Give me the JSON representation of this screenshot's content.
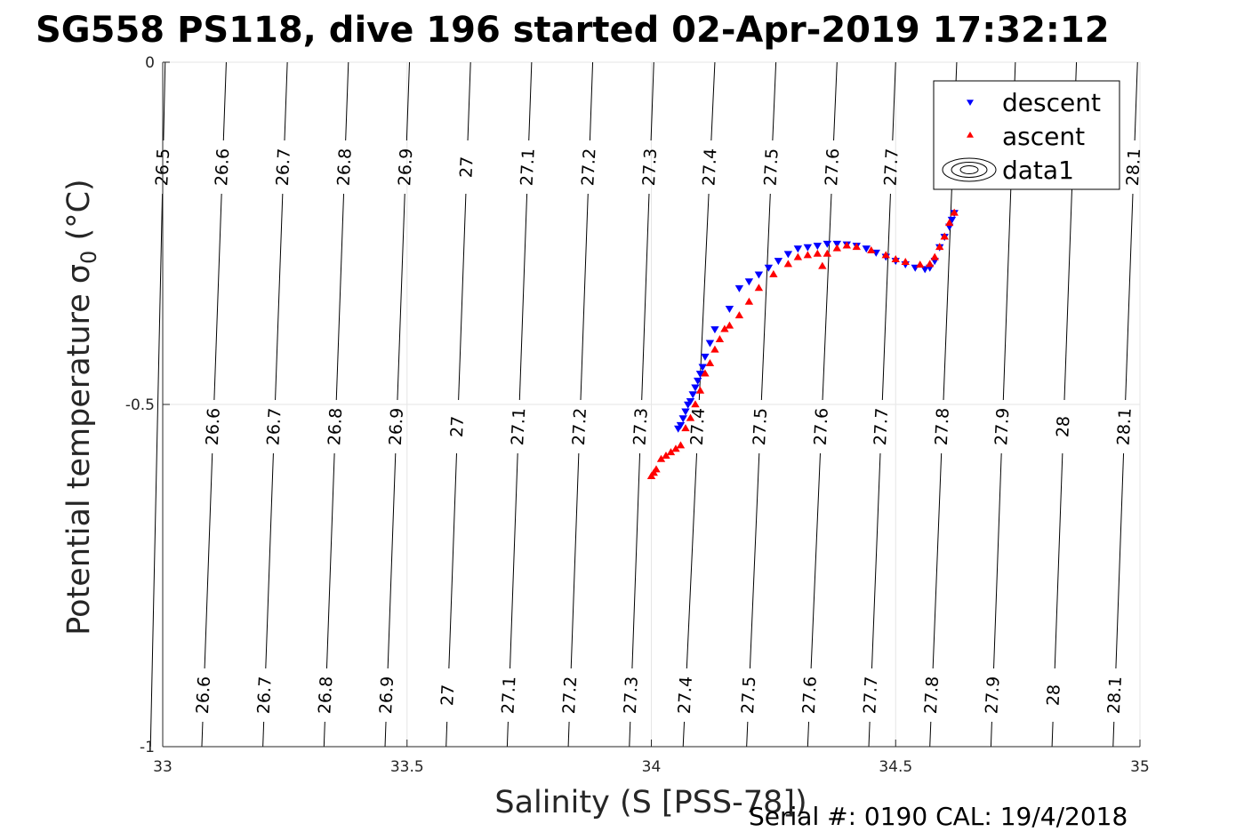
{
  "figure": {
    "title": "SG558 PS118, dive 196 started 02-Apr-2019 17:32:12",
    "footer": "Serial #: 0190  CAL: 19/4/2018"
  },
  "colors": {
    "descent": "#0000ff",
    "ascent": "#ff0000",
    "contour": "#000000",
    "grid": "#e6e6e6",
    "axis": "#262626"
  },
  "chart_data": {
    "type": "scatter",
    "title": "SG558 PS118, dive 196 started 02-Apr-2019 17:32:12",
    "xlabel": "Salinity (S [PSS-78])",
    "ylabel": "Potential temperature σ",
    "ylabel_sub": "0",
    "ylabel_unit": " (°C)",
    "xlim": [
      33,
      35
    ],
    "ylim": [
      -1,
      0
    ],
    "xticks": [
      33,
      33.5,
      34,
      34.5,
      35
    ],
    "xtick_labels": [
      "33",
      "33.5",
      "34",
      "34.5",
      "35"
    ],
    "yticks": [
      0,
      -0.5,
      -1
    ],
    "ytick_labels": [
      "0",
      "-0.5",
      "-1"
    ],
    "grid": true,
    "legend": {
      "position": "top-right",
      "entries": [
        {
          "label": "descent",
          "marker": "triangle-down",
          "color": "#0000ff"
        },
        {
          "label": "ascent",
          "marker": "triangle-up",
          "color": "#ff0000"
        },
        {
          "label": "data1",
          "marker": "contour"
        }
      ]
    },
    "contours": [
      {
        "level": "26.5",
        "s_top": 33.005,
        "s_bottom": 32.975
      },
      {
        "level": "26.6",
        "s_top": 33.13,
        "s_bottom": 33.08
      },
      {
        "level": "26.7",
        "s_top": 33.255,
        "s_bottom": 33.205
      },
      {
        "level": "26.8",
        "s_top": 33.38,
        "s_bottom": 33.33
      },
      {
        "level": "26.9",
        "s_top": 33.505,
        "s_bottom": 33.455
      },
      {
        "level": "27",
        "s_top": 33.63,
        "s_bottom": 33.58
      },
      {
        "level": "27.1",
        "s_top": 33.755,
        "s_bottom": 33.705
      },
      {
        "level": "27.2",
        "s_top": 33.88,
        "s_bottom": 33.83
      },
      {
        "level": "27.3",
        "s_top": 34.005,
        "s_bottom": 33.955
      },
      {
        "level": "27.4",
        "s_top": 34.13,
        "s_bottom": 34.065
      },
      {
        "level": "27.5",
        "s_top": 34.255,
        "s_bottom": 34.195
      },
      {
        "level": "27.6",
        "s_top": 34.38,
        "s_bottom": 34.32
      },
      {
        "level": "27.7",
        "s_top": 34.5,
        "s_bottom": 34.445
      },
      {
        "level": "27.8",
        "s_top": 34.625,
        "s_bottom": 34.57
      },
      {
        "level": "27.9",
        "s_top": 34.745,
        "s_bottom": 34.695
      },
      {
        "level": "28",
        "s_top": 34.87,
        "s_bottom": 34.82
      },
      {
        "level": "28.1",
        "s_top": 34.995,
        "s_bottom": 34.945
      }
    ],
    "contour_label_rows": [
      {
        "row": "top",
        "levels": [
          "26.5",
          "26.6",
          "26.7",
          "26.8",
          "26.9",
          "27",
          "27.1",
          "27.2",
          "27.3",
          "27.4",
          "27.5",
          "27.6",
          "27.7",
          "28.1"
        ]
      },
      {
        "row": "middle",
        "levels": [
          "26.6",
          "26.7",
          "26.8",
          "26.9",
          "27",
          "27.1",
          "27.2",
          "27.3",
          "27.4",
          "27.5",
          "27.6",
          "27.7",
          "27.8",
          "27.9",
          "28",
          "28.1"
        ]
      },
      {
        "row": "bottom",
        "levels": [
          "26.6",
          "26.7",
          "26.8",
          "26.9",
          "27",
          "27.1",
          "27.2",
          "27.3",
          "27.4",
          "27.5",
          "27.6",
          "27.7",
          "27.8",
          "27.9",
          "28",
          "28.1"
        ]
      }
    ],
    "series": [
      {
        "name": "descent",
        "marker": "triangle-down",
        "color": "#0000ff",
        "x": [
          34.055,
          34.06,
          34.065,
          34.07,
          34.075,
          34.08,
          34.085,
          34.09,
          34.095,
          34.1,
          34.105,
          34.11,
          34.12,
          34.13,
          34.16,
          34.18,
          34.2,
          34.22,
          34.24,
          34.26,
          34.28,
          34.3,
          34.32,
          34.34,
          34.36,
          34.38,
          34.4,
          34.42,
          34.44,
          34.46,
          34.48,
          34.5,
          34.52,
          34.54,
          34.56,
          34.57,
          34.58,
          34.59,
          34.6,
          34.61,
          34.615,
          34.62
        ],
        "y": [
          -0.535,
          -0.53,
          -0.52,
          -0.51,
          -0.5,
          -0.495,
          -0.485,
          -0.475,
          -0.465,
          -0.455,
          -0.445,
          -0.43,
          -0.41,
          -0.39,
          -0.36,
          -0.33,
          -0.32,
          -0.31,
          -0.3,
          -0.29,
          -0.28,
          -0.272,
          -0.27,
          -0.268,
          -0.265,
          -0.265,
          -0.266,
          -0.268,
          -0.272,
          -0.278,
          -0.284,
          -0.29,
          -0.295,
          -0.3,
          -0.302,
          -0.3,
          -0.29,
          -0.27,
          -0.255,
          -0.24,
          -0.23,
          -0.22
        ]
      },
      {
        "name": "ascent",
        "marker": "triangle-up",
        "color": "#ff0000",
        "x": [
          34.0,
          34.005,
          34.01,
          34.02,
          34.03,
          34.04,
          34.05,
          34.06,
          34.07,
          34.08,
          34.09,
          34.1,
          34.11,
          34.12,
          34.13,
          34.14,
          34.15,
          34.16,
          34.18,
          34.2,
          34.22,
          34.25,
          34.28,
          34.3,
          34.32,
          34.34,
          34.35,
          34.36,
          34.38,
          34.4,
          34.42,
          34.45,
          34.48,
          34.5,
          34.52,
          34.55,
          34.57,
          34.58,
          34.59,
          34.6,
          34.61,
          34.62
        ],
        "y": [
          -0.605,
          -0.6,
          -0.595,
          -0.58,
          -0.575,
          -0.57,
          -0.565,
          -0.56,
          -0.535,
          -0.52,
          -0.5,
          -0.48,
          -0.455,
          -0.44,
          -0.42,
          -0.405,
          -0.39,
          -0.385,
          -0.37,
          -0.35,
          -0.33,
          -0.31,
          -0.295,
          -0.285,
          -0.282,
          -0.28,
          -0.298,
          -0.28,
          -0.272,
          -0.268,
          -0.27,
          -0.275,
          -0.282,
          -0.288,
          -0.292,
          -0.296,
          -0.295,
          -0.285,
          -0.27,
          -0.255,
          -0.235,
          -0.22
        ]
      }
    ]
  }
}
